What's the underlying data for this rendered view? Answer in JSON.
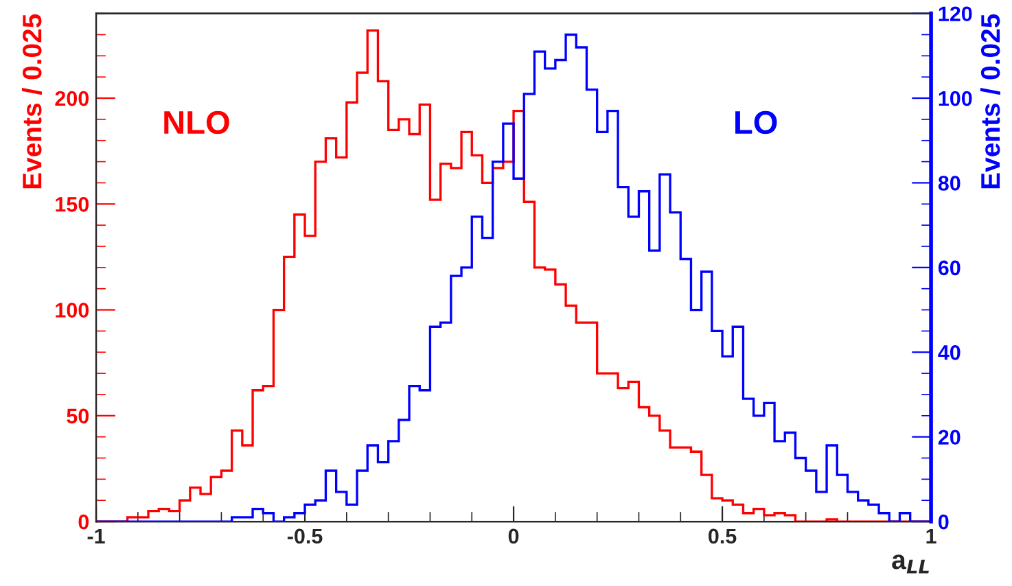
{
  "chart_data": {
    "type": "histogram",
    "xlabel": "a$_{LL}$",
    "ylabel": "Events / 0.025",
    "y2label": "Events / 0.025",
    "bins": [
      -1,
      -0.975,
      -0.95,
      -0.925,
      -0.9,
      -0.875,
      -0.85,
      -0.825,
      -0.8,
      -0.775,
      -0.75,
      -0.725,
      -0.7,
      -0.675,
      -0.65,
      -0.625,
      -0.6,
      -0.575,
      -0.55,
      -0.525,
      -0.5,
      -0.475,
      -0.45,
      -0.425,
      -0.4,
      -0.375,
      -0.35,
      -0.325,
      -0.3,
      -0.275,
      -0.25,
      -0.225,
      -0.2,
      -0.175,
      -0.15,
      -0.125,
      -0.1,
      -0.075,
      -0.05,
      -0.025,
      0,
      0.025,
      0.05,
      0.075,
      0.1,
      0.125,
      0.15,
      0.175,
      0.2,
      0.225,
      0.25,
      0.275,
      0.3,
      0.325,
      0.35,
      0.375,
      0.4,
      0.425,
      0.45,
      0.475,
      0.5,
      0.525,
      0.55,
      0.575,
      0.6,
      0.625,
      0.65,
      0.675,
      0.7,
      0.725,
      0.75,
      0.775,
      0.8,
      0.825,
      0.85,
      0.875,
      0.9,
      0.925,
      0.95,
      0.975,
      1
    ],
    "series": [
      {
        "name": "NLO",
        "color": "#ff0000",
        "values": [
          0,
          0,
          0,
          2,
          2,
          5,
          6,
          5,
          10,
          16,
          13,
          21,
          24,
          43,
          36,
          62,
          64,
          100,
          125,
          145,
          135,
          170,
          181,
          172,
          198,
          212,
          232,
          208,
          185,
          190,
          183,
          197,
          152,
          169,
          167,
          184,
          173,
          160,
          167,
          170,
          194,
          151,
          120,
          119,
          112,
          102,
          94,
          94,
          70,
          70,
          63,
          66,
          54,
          50,
          43,
          35,
          35,
          33,
          22,
          11,
          10,
          8,
          4,
          6,
          3,
          4,
          3,
          0,
          0,
          0,
          1,
          0,
          0,
          0,
          0,
          0,
          0,
          0,
          0,
          0
        ]
      },
      {
        "name": "LO",
        "color": "#0000ff",
        "axis": "y2",
        "values": [
          0,
          0,
          0,
          0,
          0,
          0,
          0,
          0,
          0,
          0,
          0,
          0,
          0,
          1,
          1,
          3,
          2,
          0,
          1,
          2,
          4,
          5,
          12,
          7,
          4,
          12,
          18,
          14,
          19,
          24,
          32,
          31,
          46,
          47,
          58,
          60,
          72,
          67,
          85,
          94,
          81,
          101,
          111,
          107,
          109,
          115,
          112,
          102,
          92,
          97,
          79,
          72,
          78,
          64,
          82,
          73,
          62,
          50,
          59,
          45,
          39,
          46,
          29,
          25,
          28,
          19,
          21,
          15,
          12,
          7,
          18,
          11,
          7,
          5,
          4,
          2,
          0,
          2,
          0,
          0
        ]
      }
    ],
    "xlim": [
      -1,
      1
    ],
    "xticks": [
      -1,
      -0.5,
      0,
      0.5,
      1
    ],
    "ylim": [
      0,
      240
    ],
    "yticks": [
      0,
      50,
      100,
      150,
      200
    ],
    "y2lim": [
      0,
      120
    ],
    "y2ticks": [
      0,
      20,
      40,
      60,
      80,
      100,
      120
    ],
    "grid": false,
    "legend": false
  }
}
